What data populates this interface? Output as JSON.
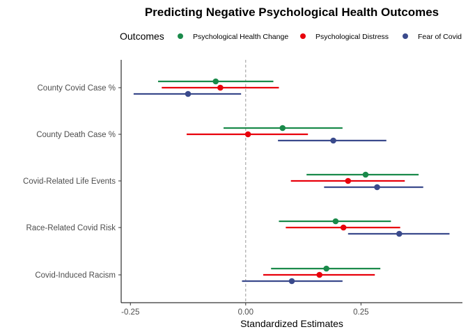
{
  "chart_data": {
    "type": "forest",
    "title": "Predicting Negative Psychological Health Outcomes",
    "xlabel": "Standardized Estimates",
    "ylabel": "",
    "xlim": [
      -0.27,
      0.47
    ],
    "x_ticks": [
      -0.25,
      0.0,
      0.25
    ],
    "x_tick_labels": [
      "-0.25",
      "0.00",
      "0.25"
    ],
    "reference_line": 0,
    "legend": {
      "title": "Outcomes",
      "position": "top"
    },
    "categories": [
      "County Covid Case %",
      "County Death Case %",
      "Covid-Related Life Events",
      "Race-Related Covid Risk",
      "Covid-Induced Racism"
    ],
    "series": [
      {
        "name": "Psychological Health Change",
        "color": "#1a8a4a",
        "estimates": [
          -0.065,
          0.08,
          0.26,
          0.195,
          0.175
        ],
        "lower": [
          -0.19,
          -0.048,
          0.132,
          0.072,
          0.055
        ],
        "upper": [
          0.06,
          0.21,
          0.375,
          0.315,
          0.292
        ]
      },
      {
        "name": "Psychological Distress",
        "color": "#e8000b",
        "estimates": [
          -0.055,
          0.005,
          0.222,
          0.212,
          0.16
        ],
        "lower": [
          -0.182,
          -0.128,
          0.098,
          0.087,
          0.038
        ],
        "upper": [
          0.072,
          0.135,
          0.345,
          0.335,
          0.28
        ]
      },
      {
        "name": "Fear of Covid",
        "color": "#3a4a8c",
        "estimates": [
          -0.125,
          0.19,
          0.285,
          0.333,
          0.1
        ],
        "lower": [
          -0.243,
          0.07,
          0.17,
          0.222,
          -0.008
        ],
        "upper": [
          -0.01,
          0.305,
          0.385,
          0.442,
          0.21
        ]
      }
    ]
  }
}
